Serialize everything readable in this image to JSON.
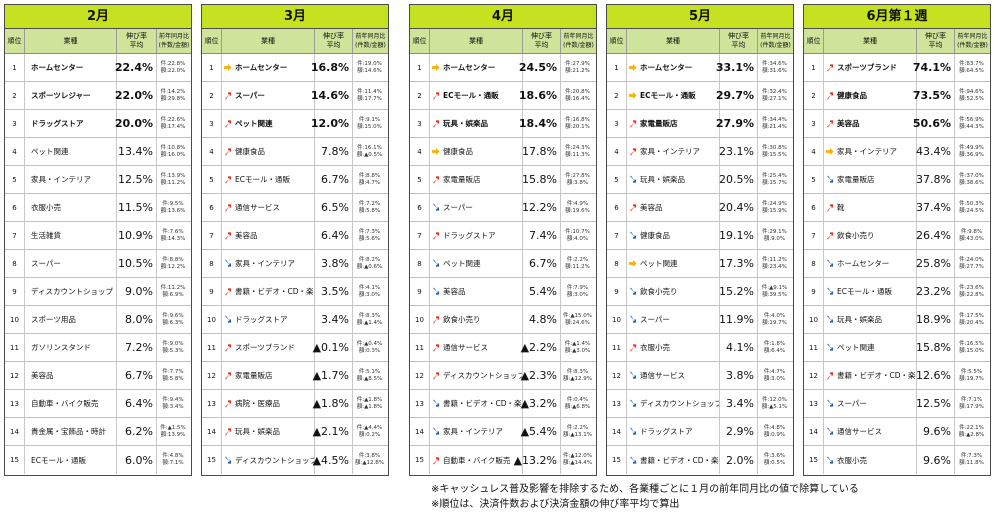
{
  "headers": {
    "rank": "順位",
    "industry": "業種",
    "rate": "伸び率\n平均",
    "yoy": "前年同月比\n(件数/金額)"
  },
  "colors": {
    "up": "#e8301c",
    "flat": "#f5b400",
    "down": "#2264b0",
    "title_bg": "#c6e11f",
    "header_bg": "#cfe39a"
  },
  "panels": [
    {
      "title": "2月",
      "rows": [
        {
          "rank": "1",
          "arrow": "",
          "industry": "ホームセンター",
          "rate": "22.4%",
          "yoy1": "件:22.8%",
          "yoy2": "額:22.0%",
          "bold": true
        },
        {
          "rank": "2",
          "arrow": "",
          "industry": "スポーツレジャー",
          "rate": "22.0%",
          "yoy1": "件:14.2%",
          "yoy2": "額:29.8%",
          "bold": true
        },
        {
          "rank": "3",
          "arrow": "",
          "industry": "ドラッグストア",
          "rate": "20.0%",
          "yoy1": "件:22.6%",
          "yoy2": "額:17.4%",
          "bold": true
        },
        {
          "rank": "4",
          "arrow": "",
          "industry": "ペット関連",
          "rate": "13.4%",
          "yoy1": "件:10.8%",
          "yoy2": "額:16.0%",
          "bold": false
        },
        {
          "rank": "5",
          "arrow": "",
          "industry": "家具・インテリア",
          "rate": "12.5%",
          "yoy1": "件:13.9%",
          "yoy2": "額:11.2%",
          "bold": false
        },
        {
          "rank": "6",
          "arrow": "",
          "industry": "衣服小売",
          "rate": "11.5%",
          "yoy1": "件:9.5%",
          "yoy2": "額:13.6%",
          "bold": false
        },
        {
          "rank": "7",
          "arrow": "",
          "industry": "生活雑貨",
          "rate": "10.9%",
          "yoy1": "件:7.6%",
          "yoy2": "額:14.3%",
          "bold": false
        },
        {
          "rank": "8",
          "arrow": "",
          "industry": "スーパー",
          "rate": "10.5%",
          "yoy1": "件:8.8%",
          "yoy2": "額:12.2%",
          "bold": false
        },
        {
          "rank": "9",
          "arrow": "",
          "industry": "ディスカウントショップ",
          "rate": "9.0%",
          "yoy1": "件:11.2%",
          "yoy2": "額:6.9%",
          "bold": false
        },
        {
          "rank": "10",
          "arrow": "",
          "industry": "スポーツ用品",
          "rate": "8.0%",
          "yoy1": "件:9.6%",
          "yoy2": "額:6.3%",
          "bold": false
        },
        {
          "rank": "11",
          "arrow": "",
          "industry": "ガソリンスタンド",
          "rate": "7.2%",
          "yoy1": "件:9.0%",
          "yoy2": "額:5.3%",
          "bold": false
        },
        {
          "rank": "12",
          "arrow": "",
          "industry": "美容品",
          "rate": "6.7%",
          "yoy1": "件:7.7%",
          "yoy2": "額:5.8%",
          "bold": false
        },
        {
          "rank": "13",
          "arrow": "",
          "industry": "自動車・バイク販売",
          "rate": "6.4%",
          "yoy1": "件:9.4%",
          "yoy2": "額:3.4%",
          "bold": false
        },
        {
          "rank": "14",
          "arrow": "",
          "industry": "貴金属・宝飾品・時計",
          "rate": "6.2%",
          "yoy1": "件:▲1.5%",
          "yoy2": "額:13.9%",
          "bold": false
        },
        {
          "rank": "15",
          "arrow": "",
          "industry": "ECモール・通販",
          "rate": "6.0%",
          "yoy1": "件:4.8%",
          "yoy2": "額:7.1%",
          "bold": false
        }
      ]
    },
    {
      "title": "3月",
      "rows": [
        {
          "rank": "1",
          "arrow": "flat",
          "industry": "ホームセンター",
          "rate": "16.8%",
          "yoy1": "件:19.0%",
          "yoy2": "額:14.6%",
          "bold": true
        },
        {
          "rank": "2",
          "arrow": "up",
          "industry": "スーパー",
          "rate": "14.6%",
          "yoy1": "件:11.4%",
          "yoy2": "額:17.7%",
          "bold": true
        },
        {
          "rank": "3",
          "arrow": "up",
          "industry": "ペット関連",
          "rate": "12.0%",
          "yoy1": "件:9.1%",
          "yoy2": "額:15.0%",
          "bold": true
        },
        {
          "rank": "4",
          "arrow": "up",
          "industry": "健康食品",
          "rate": "7.8%",
          "yoy1": "件:16.1%",
          "yoy2": "額:▲0.5%",
          "bold": false
        },
        {
          "rank": "5",
          "arrow": "up",
          "industry": "ECモール・通販",
          "rate": "6.7%",
          "yoy1": "件:8.8%",
          "yoy2": "額:4.7%",
          "bold": false
        },
        {
          "rank": "6",
          "arrow": "up",
          "industry": "通信サービス",
          "rate": "6.5%",
          "yoy1": "件:7.2%",
          "yoy2": "額:5.8%",
          "bold": false
        },
        {
          "rank": "7",
          "arrow": "up",
          "industry": "美容品",
          "rate": "6.4%",
          "yoy1": "件:7.3%",
          "yoy2": "額:5.6%",
          "bold": false
        },
        {
          "rank": "8",
          "arrow": "down",
          "industry": "家具・インテリア",
          "rate": "3.8%",
          "yoy1": "件:8.2%",
          "yoy2": "額:▲0.6%",
          "bold": false
        },
        {
          "rank": "9",
          "arrow": "up",
          "industry": "書籍・ビデオ・CD・楽器",
          "rate": "3.5%",
          "yoy1": "件:4.1%",
          "yoy2": "額:3.0%",
          "bold": false
        },
        {
          "rank": "10",
          "arrow": "down",
          "industry": "ドラッグストア",
          "rate": "3.4%",
          "yoy1": "件:8.3%",
          "yoy2": "額:▲1.4%",
          "bold": false
        },
        {
          "rank": "11",
          "arrow": "up",
          "industry": "スポーツブランド",
          "rate": "▲0.1%",
          "yoy1": "件:▲0.4%",
          "yoy2": "額:0.3%",
          "bold": false
        },
        {
          "rank": "12",
          "arrow": "up",
          "industry": "家電量販店",
          "rate": "▲1.7%",
          "yoy1": "件:5.1%",
          "yoy2": "額:▲8.5%",
          "bold": false
        },
        {
          "rank": "13",
          "arrow": "up",
          "industry": "病院・医療品",
          "rate": "▲1.8%",
          "yoy1": "件:▲1.8%",
          "yoy2": "額:▲1.8%",
          "bold": false
        },
        {
          "rank": "14",
          "arrow": "up",
          "industry": "玩具・娯楽品",
          "rate": "▲2.1%",
          "yoy1": "件:▲4.4%",
          "yoy2": "額:0.2%",
          "bold": false
        },
        {
          "rank": "15",
          "arrow": "down",
          "industry": "ディスカウントショップ",
          "rate": "▲4.5%",
          "yoy1": "件:3.8%",
          "yoy2": "額:▲12.8%",
          "bold": false
        }
      ]
    },
    {
      "title": "4月",
      "rows": [
        {
          "rank": "1",
          "arrow": "flat",
          "industry": "ホームセンター",
          "rate": "24.5%",
          "yoy1": "件:27.9%",
          "yoy2": "額:21.2%",
          "bold": true
        },
        {
          "rank": "2",
          "arrow": "up",
          "industry": "ECモール・通販",
          "rate": "18.6%",
          "yoy1": "件:20.8%",
          "yoy2": "額:16.4%",
          "bold": true
        },
        {
          "rank": "3",
          "arrow": "up",
          "industry": "玩具・娯楽品",
          "rate": "18.4%",
          "yoy1": "件:16.8%",
          "yoy2": "額:20.1%",
          "bold": true
        },
        {
          "rank": "4",
          "arrow": "flat",
          "industry": "健康食品",
          "rate": "17.8%",
          "yoy1": "件:24.3%",
          "yoy2": "額:11.3%",
          "bold": false
        },
        {
          "rank": "5",
          "arrow": "up",
          "industry": "家電量販店",
          "rate": "15.8%",
          "yoy1": "件:27.8%",
          "yoy2": "額:3.8%",
          "bold": false
        },
        {
          "rank": "6",
          "arrow": "down",
          "industry": "スーパー",
          "rate": "12.2%",
          "yoy1": "件:4.9%",
          "yoy2": "額:19.6%",
          "bold": false
        },
        {
          "rank": "7",
          "arrow": "up",
          "industry": "ドラッグストア",
          "rate": "7.4%",
          "yoy1": "件:10.7%",
          "yoy2": "額:4.0%",
          "bold": false
        },
        {
          "rank": "8",
          "arrow": "down",
          "industry": "ペット関連",
          "rate": "6.7%",
          "yoy1": "件:2.2%",
          "yoy2": "額:11.2%",
          "bold": false
        },
        {
          "rank": "9",
          "arrow": "down",
          "industry": "美容品",
          "rate": "5.4%",
          "yoy1": "件:7.9%",
          "yoy2": "額:3.0%",
          "bold": false
        },
        {
          "rank": "10",
          "arrow": "up",
          "industry": "飲食小売り",
          "rate": "4.8%",
          "yoy1": "件:▲15.0%",
          "yoy2": "額:24.6%",
          "bold": false
        },
        {
          "rank": "11",
          "arrow": "up",
          "industry": "通信サービス",
          "rate": "▲2.2%",
          "yoy1": "件:▲1.4%",
          "yoy2": "額:▲3.0%",
          "bold": false
        },
        {
          "rank": "12",
          "arrow": "up",
          "industry": "ディスカウントショップ",
          "rate": "▲2.3%",
          "yoy1": "件:8.3%",
          "yoy2": "額:▲12.9%",
          "bold": false
        },
        {
          "rank": "13",
          "arrow": "down",
          "industry": "書籍・ビデオ・CD・楽器",
          "rate": "▲3.2%",
          "yoy1": "件:0.4%",
          "yoy2": "額:▲6.8%",
          "bold": false
        },
        {
          "rank": "14",
          "arrow": "down",
          "industry": "家具・インテリア",
          "rate": "▲5.4%",
          "yoy1": "件:2.2%",
          "yoy2": "額:▲13.1%",
          "bold": false
        },
        {
          "rank": "15",
          "arrow": "up",
          "industry": "自動車・バイク販売",
          "rate": "▲13.2%",
          "yoy1": "件:▲12.0%",
          "yoy2": "額:▲14.4%",
          "bold": false
        }
      ]
    },
    {
      "title": "5月",
      "rows": [
        {
          "rank": "1",
          "arrow": "flat",
          "industry": "ホームセンター",
          "rate": "33.1%",
          "yoy1": "件:34.6%",
          "yoy2": "額:31.6%",
          "bold": true
        },
        {
          "rank": "2",
          "arrow": "flat",
          "industry": "ECモール・通販",
          "rate": "29.7%",
          "yoy1": "件:32.4%",
          "yoy2": "額:27.1%",
          "bold": true
        },
        {
          "rank": "3",
          "arrow": "up",
          "industry": "家電量販店",
          "rate": "27.9%",
          "yoy1": "件:34.4%",
          "yoy2": "額:21.4%",
          "bold": true
        },
        {
          "rank": "4",
          "arrow": "up",
          "industry": "家具・インテリア",
          "rate": "23.1%",
          "yoy1": "件:30.8%",
          "yoy2": "額:15.5%",
          "bold": false
        },
        {
          "rank": "5",
          "arrow": "down",
          "industry": "玩具・娯楽品",
          "rate": "20.5%",
          "yoy1": "件:25.4%",
          "yoy2": "額:15.7%",
          "bold": false
        },
        {
          "rank": "6",
          "arrow": "up",
          "industry": "美容品",
          "rate": "20.4%",
          "yoy1": "件:24.9%",
          "yoy2": "額:15.9%",
          "bold": false
        },
        {
          "rank": "7",
          "arrow": "down",
          "industry": "健康食品",
          "rate": "19.1%",
          "yoy1": "件:29.1%",
          "yoy2": "額:9.0%",
          "bold": false
        },
        {
          "rank": "8",
          "arrow": "flat",
          "industry": "ペット関連",
          "rate": "17.3%",
          "yoy1": "件:11.2%",
          "yoy2": "額:23.4%",
          "bold": false
        },
        {
          "rank": "9",
          "arrow": "down",
          "industry": "飲食小売り",
          "rate": "15.2%",
          "yoy1": "件:▲9.1%",
          "yoy2": "額:39.5%",
          "bold": false
        },
        {
          "rank": "10",
          "arrow": "down",
          "industry": "スーパー",
          "rate": "11.9%",
          "yoy1": "件:4.0%",
          "yoy2": "額:19.7%",
          "bold": false
        },
        {
          "rank": "11",
          "arrow": "up",
          "industry": "衣服小売",
          "rate": "4.1%",
          "yoy1": "件:1.8%",
          "yoy2": "額:6.4%",
          "bold": false
        },
        {
          "rank": "12",
          "arrow": "down",
          "industry": "通信サービス",
          "rate": "3.8%",
          "yoy1": "件:4.7%",
          "yoy2": "額:3.0%",
          "bold": false
        },
        {
          "rank": "13",
          "arrow": "down",
          "industry": "ディスカウントショップ",
          "rate": "3.4%",
          "yoy1": "件:12.0%",
          "yoy2": "額:▲5.1%",
          "bold": false
        },
        {
          "rank": "14",
          "arrow": "down",
          "industry": "ドラッグストア",
          "rate": "2.9%",
          "yoy1": "件:4.8%",
          "yoy2": "額:0.9%",
          "bold": false
        },
        {
          "rank": "15",
          "arrow": "down",
          "industry": "書籍・ビデオ・CD・楽器",
          "rate": "2.0%",
          "yoy1": "件:3.6%",
          "yoy2": "額:0.5%",
          "bold": false
        }
      ]
    },
    {
      "title": "6月第１週",
      "rows": [
        {
          "rank": "1",
          "arrow": "up",
          "industry": "スポーツブランド",
          "rate": "74.1%",
          "yoy1": "件:83.7%",
          "yoy2": "額:64.5%",
          "bold": true
        },
        {
          "rank": "2",
          "arrow": "up",
          "industry": "健康食品",
          "rate": "73.5%",
          "yoy1": "件:94.6%",
          "yoy2": "額:52.5%",
          "bold": true
        },
        {
          "rank": "3",
          "arrow": "up",
          "industry": "美容品",
          "rate": "50.6%",
          "yoy1": "件:56.9%",
          "yoy2": "額:44.3%",
          "bold": true
        },
        {
          "rank": "4",
          "arrow": "flat",
          "industry": "家具・インテリア",
          "rate": "43.4%",
          "yoy1": "件:49.9%",
          "yoy2": "額:36.9%",
          "bold": false
        },
        {
          "rank": "5",
          "arrow": "down",
          "industry": "家電量販店",
          "rate": "37.8%",
          "yoy1": "件:37.0%",
          "yoy2": "額:38.6%",
          "bold": false
        },
        {
          "rank": "6",
          "arrow": "up",
          "industry": "靴",
          "rate": "37.4%",
          "yoy1": "件:50.3%",
          "yoy2": "額:24.5%",
          "bold": false
        },
        {
          "rank": "7",
          "arrow": "up",
          "industry": "飲食小売り",
          "rate": "26.4%",
          "yoy1": "件:9.8%",
          "yoy2": "額:43.0%",
          "bold": false
        },
        {
          "rank": "8",
          "arrow": "down",
          "industry": "ホームセンター",
          "rate": "25.8%",
          "yoy1": "件:24.0%",
          "yoy2": "額:27.7%",
          "bold": false
        },
        {
          "rank": "9",
          "arrow": "down",
          "industry": "ECモール・通販",
          "rate": "23.2%",
          "yoy1": "件:23.6%",
          "yoy2": "額:22.8%",
          "bold": false
        },
        {
          "rank": "10",
          "arrow": "down",
          "industry": "玩具・娯楽品",
          "rate": "18.9%",
          "yoy1": "件:17.5%",
          "yoy2": "額:20.4%",
          "bold": false
        },
        {
          "rank": "11",
          "arrow": "down",
          "industry": "ペット関連",
          "rate": "15.8%",
          "yoy1": "件:16.5%",
          "yoy2": "額:15.0%",
          "bold": false
        },
        {
          "rank": "12",
          "arrow": "up",
          "industry": "書籍・ビデオ・CD・楽器",
          "rate": "12.6%",
          "yoy1": "件:5.5%",
          "yoy2": "額:19.7%",
          "bold": false
        },
        {
          "rank": "13",
          "arrow": "down",
          "industry": "スーパー",
          "rate": "12.5%",
          "yoy1": "件:7.1%",
          "yoy2": "額:17.9%",
          "bold": false
        },
        {
          "rank": "14",
          "arrow": "down",
          "industry": "通信サービス",
          "rate": "9.6%",
          "yoy1": "件:22.1%",
          "yoy2": "額:▲2.8%",
          "bold": false
        },
        {
          "rank": "15",
          "arrow": "down",
          "industry": "衣服小売",
          "rate": "9.6%",
          "yoy1": "件:7.3%",
          "yoy2": "額:11.8%",
          "bold": false
        }
      ]
    }
  ],
  "notes": [
    "※キャッシュレス普及影響を排除するため、各業種ごとに１月の前年同月比の値で除算している",
    "※順位は、決済件数および決済金額の伸び率平均で算出"
  ]
}
